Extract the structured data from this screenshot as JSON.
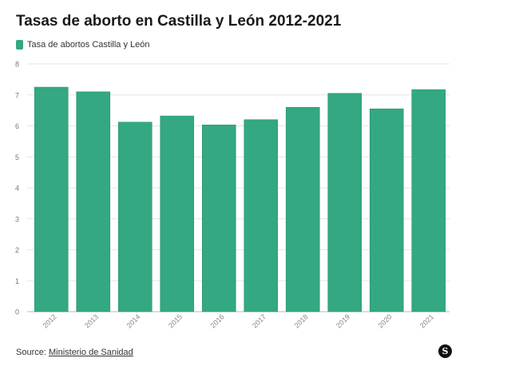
{
  "chart_data": {
    "type": "bar",
    "title": "Tasas de aborto en Castilla y León 2012-2021",
    "legend": {
      "position": "top-left",
      "entries": [
        "Tasa de abortos Castilla y León"
      ]
    },
    "categories": [
      "2012",
      "2013",
      "2014",
      "2015",
      "2016",
      "2017",
      "2018",
      "2019",
      "2020",
      "2021"
    ],
    "series": [
      {
        "name": "Tasa de abortos Castilla y León",
        "values": [
          7.25,
          7.1,
          6.12,
          6.32,
          6.03,
          6.2,
          6.6,
          7.05,
          6.55,
          7.17
        ]
      }
    ],
    "ylim": [
      0,
      8
    ],
    "yticks": [
      "0",
      "1",
      "2",
      "3",
      "4",
      "5",
      "6",
      "7",
      "8"
    ],
    "grid": true,
    "color": "#33a883"
  },
  "footer": {
    "source_prefix": "Source: ",
    "source_link": "Ministerio de Sanidad",
    "logo_letter": "S"
  }
}
